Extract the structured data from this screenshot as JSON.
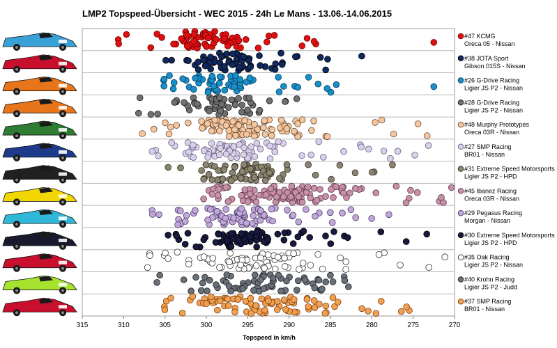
{
  "chart_data": {
    "type": "scatter",
    "title": "LMP2 Topspeed-Übersicht  - WEC 2015  - 24h  Le Mans  - 13.06.-14.06.2015",
    "xlabel": "Topspeed in km/h",
    "ylabel": "",
    "xlim": [
      315,
      270
    ],
    "x_reversed": true,
    "x_ticks": [
      "315",
      "310",
      "305",
      "300",
      "295",
      "290",
      "285",
      "280",
      "275",
      "270"
    ],
    "grid": "horizontal",
    "legend": "right",
    "series": [
      {
        "name": "#47 KCMG",
        "subtitle": "Oreca 05 - Nissan",
        "color": "#e01010",
        "edge": "#700000",
        "core": [
          295,
          306
        ],
        "spread": [
          283,
          311
        ],
        "outliers": [
          272.5
        ],
        "count": 70
      },
      {
        "name": "#38 JOTA Sport",
        "subtitle": "Gibson 015S - Nissan",
        "color": "#102860",
        "edge": "#000000",
        "core": [
          291,
          302
        ],
        "spread": [
          281,
          305
        ],
        "outliers": [],
        "count": 65
      },
      {
        "name": "#26 G-Drive Racing",
        "subtitle": "Ligier JS P2 - Nissan",
        "color": "#1a90c8",
        "edge": "#003a60",
        "core": [
          293,
          304
        ],
        "spread": [
          283,
          307
        ],
        "outliers": [
          272.5
        ],
        "count": 60
      },
      {
        "name": "#28 G-Drive Racing",
        "subtitle": "Ligier JS P2 - Nissan",
        "color": "#707070",
        "edge": "#202020",
        "core": [
          292,
          304
        ],
        "spread": [
          283,
          309
        ],
        "outliers": [],
        "count": 60
      },
      {
        "name": "#48 Murphy Prototypes",
        "subtitle": "Oreca 03R - Nissan",
        "color": "#f5c7a0",
        "edge": "#6a4a30",
        "core": [
          287,
          303
        ],
        "spread": [
          273,
          309
        ],
        "outliers": [],
        "count": 110
      },
      {
        "name": "#27 SMP Racing",
        "subtitle": "BR01 - Nissan",
        "color": "#d8d0e8",
        "edge": "#6a6080",
        "core": [
          290,
          304
        ],
        "spread": [
          273,
          307
        ],
        "outliers": [],
        "count": 80
      },
      {
        "name": "#31 Extreme Speed Motorsports",
        "subtitle": "Ligier JS P2 - HPD",
        "color": "#8a8470",
        "edge": "#302c20",
        "core": [
          289,
          302
        ],
        "spread": [
          276,
          305
        ],
        "outliers": [],
        "count": 80
      },
      {
        "name": "#45 Ibanez Racing",
        "subtitle": "Oreca 03R - Nissan",
        "color": "#c890a8",
        "edge": "#5a3848",
        "core": [
          282,
          300
        ],
        "spread": [
          270,
          304
        ],
        "outliers": [],
        "count": 110
      },
      {
        "name": "#29 Pegasus Racing",
        "subtitle": "Morgan - Nissan",
        "color": "#c0a8d8",
        "edge": "#4a3868",
        "core": [
          288,
          304
        ],
        "spread": [
          276,
          307
        ],
        "outliers": [],
        "count": 80
      },
      {
        "name": "#30 Extreme Speed Motorsports",
        "subtitle": "Ligier JS P2 - HPD",
        "color": "#181a40",
        "edge": "#000000",
        "core": [
          287,
          302
        ],
        "spread": [
          272,
          305
        ],
        "outliers": [],
        "count": 80
      },
      {
        "name": "#35 Oak Racing",
        "subtitle": "Ligier JS P2 - Nissan",
        "color": "#ffffff",
        "edge": "#303030",
        "core": [
          285,
          303
        ],
        "spread": [
          271,
          308
        ],
        "outliers": [],
        "count": 75
      },
      {
        "name": "#40 Krohn Racing",
        "subtitle": "Ligier JS P2 - Judd",
        "color": "#6a7078",
        "edge": "#202428",
        "core": [
          285,
          302
        ],
        "spread": [
          280,
          306
        ],
        "outliers": [],
        "count": 70
      },
      {
        "name": "#37 SMP Racing",
        "subtitle": "BR01 - Nissan",
        "color": "#f0a050",
        "edge": "#804010",
        "core": [
          285,
          303
        ],
        "spread": [
          275,
          306
        ],
        "outliers": [],
        "count": 90
      }
    ],
    "car_liveries": [
      "#3aa0d8",
      "#c8102e",
      "#e8751a",
      "#e8751a",
      "#2e7d32",
      "#1e3a8a",
      "#202020",
      "#f2d600",
      "#30b8d8",
      "#1a1a2e",
      "#c8102e",
      "#a6e22e",
      "#c8102e"
    ]
  }
}
